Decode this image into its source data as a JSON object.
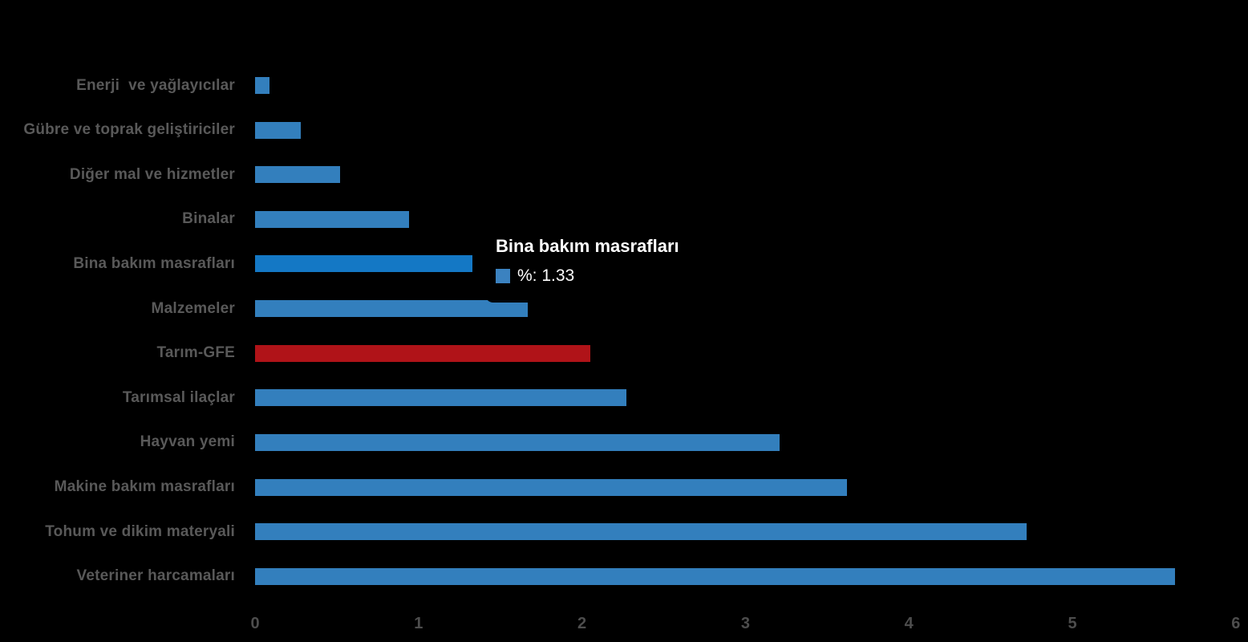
{
  "chart_data": {
    "type": "bar",
    "orientation": "horizontal",
    "title": "",
    "xlabel": "",
    "ylabel": "",
    "series_name": "%",
    "categories": [
      "Enerji  ve yağlayıcılar",
      "Gübre ve toprak geliştiriciler",
      "Diğer mal ve hizmetler",
      "Binalar",
      "Bina bakım masrafları",
      "Malzemeler",
      "Tarım-GFE",
      "Tarımsal ilaçlar",
      "Hayvan yemi",
      "Makine bakım masrafları",
      "Tohum ve dikim materyali",
      "Veteriner harcamaları"
    ],
    "values": [
      0.09,
      0.28,
      0.52,
      0.94,
      1.33,
      1.67,
      2.05,
      2.27,
      3.21,
      3.62,
      4.72,
      5.63
    ],
    "xlim": [
      0,
      6
    ],
    "x_ticks": [
      "0",
      "1",
      "2",
      "3",
      "4",
      "5",
      "6"
    ],
    "grid": false,
    "legend": "none",
    "hovered_index": 4,
    "highlight_index": 6
  },
  "tooltip": {
    "title": "Bina bakım masrafları",
    "series_label": "%",
    "value": "1.33",
    "text": "%: 1.33"
  },
  "colors": {
    "background": "#000000",
    "bar_blue": "#337FBD",
    "bar_blue_hover": "#1478C5",
    "bar_red": "#B01318",
    "label_gray": "#595959",
    "tick_gray": "#4D4D4D",
    "tooltip_text": "#FFFFFF",
    "tooltip_marker_blue": "#3B82C0"
  }
}
